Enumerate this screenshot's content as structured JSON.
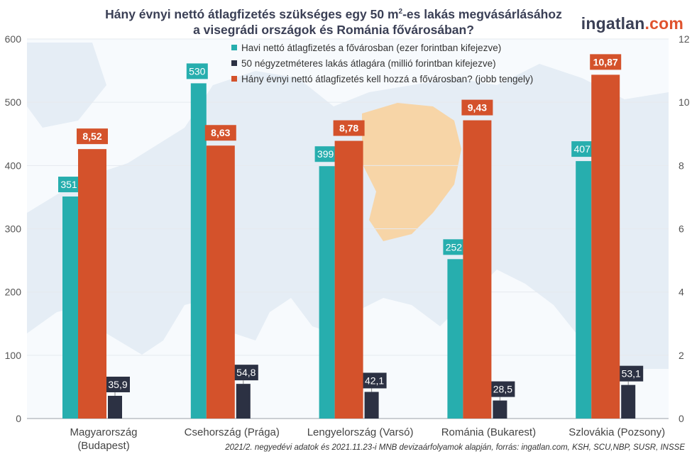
{
  "title_line1": "Hány évnyi nettó átlagfizetés szükséges egy 50 m",
  "title_sup": "2",
  "title_line1_end": "-es lakás megvásárlásához",
  "title_line2": "a visegrádi országok és Románia fővárosában?",
  "brand": {
    "main": "ingatlan",
    "suffix": ".com"
  },
  "footer": "2021/2. negyedévi adatok és 2021.11.23-i MNB devizaárfolyamok alapján, forrás: ingatlan.com, KSH, SCU,NBP, SUSR, INSSE",
  "colors": {
    "teal": "#27aeae",
    "dark": "#2c3143",
    "orange": "#d4522b",
    "map": "#e5edf5",
    "highlight": "#f7d5a7"
  },
  "chart_data": {
    "type": "bar",
    "categories": [
      [
        "Magyarország",
        "(Budapest)"
      ],
      [
        "Csehország (Prága)"
      ],
      [
        "Lengyelország (Varsó)"
      ],
      [
        "Románia (Bukarest)"
      ],
      [
        "Szlovákia (Pozsony)"
      ]
    ],
    "series": [
      {
        "name": "Havi nettó átlagfizetés a fővárosban (ezer forintban kifejezve)",
        "axis": "left",
        "values": [
          351,
          530,
          399,
          252,
          407
        ],
        "labels": [
          "351",
          "530",
          "399",
          "252",
          "407"
        ]
      },
      {
        "name": "50 négyzetméteres lakás átlagára (millió forintban kifejezve)",
        "axis": "left",
        "values": [
          35.9,
          54.8,
          42.1,
          28.5,
          53.1
        ],
        "labels": [
          "35,9",
          "54,8",
          "42,1",
          "28,5",
          "53,1"
        ]
      },
      {
        "name": "Hány évnyi nettó átlagfizetés kell hozzá a fővárosban? (jobb tengely)",
        "axis": "right",
        "values": [
          8.52,
          8.63,
          8.78,
          9.43,
          10.87
        ],
        "labels": [
          "8,52",
          "8,63",
          "8,78",
          "9,43",
          "10,87"
        ]
      }
    ],
    "left_axis": {
      "min": 0,
      "max": 600,
      "ticks": [
        0,
        100,
        200,
        300,
        400,
        500,
        600
      ]
    },
    "right_axis": {
      "min": 0,
      "max": 12,
      "ticks": [
        0,
        2,
        4,
        6,
        8,
        10,
        12
      ]
    },
    "legend_position": "top-center"
  }
}
